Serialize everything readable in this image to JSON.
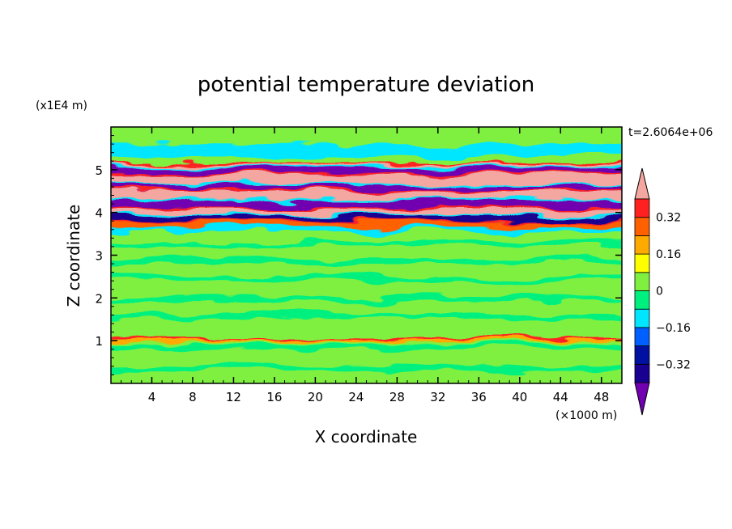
{
  "chart_data": {
    "type": "contour",
    "title": "potential temperature deviation",
    "xlabel": "X coordinate",
    "ylabel": "Z coordinate",
    "x_unit": "(×1000 m)",
    "y_unit": "(x1E4 m)",
    "time_label": "t=2.6064e+06",
    "xlim": [
      0,
      50
    ],
    "ylim": [
      0,
      6
    ],
    "x_ticks": [
      "4",
      "8",
      "12",
      "16",
      "20",
      "24",
      "28",
      "32",
      "36",
      "40",
      "44",
      "48"
    ],
    "y_ticks": [
      "1",
      "2",
      "3",
      "4",
      "5"
    ],
    "colorbar": {
      "labels": [
        "0.32",
        "0.16",
        "0",
        "−0.16",
        "−0.32"
      ],
      "levels": [
        -0.4,
        -0.32,
        -0.24,
        -0.16,
        -0.08,
        0,
        0.08,
        0.16,
        0.24,
        0.32,
        0.4
      ],
      "colors": [
        "#1a0090",
        "#0010a0",
        "#0060ff",
        "#00e6ff",
        "#00f080",
        "#80f040",
        "#ffff00",
        "#ffaa00",
        "#ff6000",
        "#ff2020"
      ],
      "under_color": "#7000b0",
      "over_color": "#f4a6a0"
    },
    "bands": [
      {
        "y": 5.05,
        "value": 0.42,
        "thickness": 0.08
      },
      {
        "y": 4.95,
        "value": -0.42,
        "thickness": 0.1
      },
      {
        "y": 4.75,
        "value": 0.42,
        "thickness": 0.12
      },
      {
        "y": 4.55,
        "value": -0.42,
        "thickness": 0.08
      },
      {
        "y": 4.4,
        "value": 0.42,
        "thickness": 0.1
      },
      {
        "y": 4.2,
        "value": -0.42,
        "thickness": 0.1
      },
      {
        "y": 4.0,
        "value": 0.42,
        "thickness": 0.1
      },
      {
        "y": 3.85,
        "value": -0.35,
        "thickness": 0.08
      },
      {
        "y": 3.7,
        "value": 0.3,
        "thickness": 0.06
      },
      {
        "y": 1.0,
        "value": 0.2,
        "thickness": 0.03
      }
    ]
  }
}
